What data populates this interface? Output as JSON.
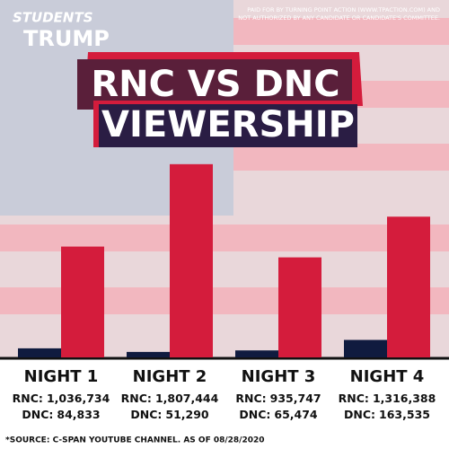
{
  "logo": [
    "STUDENTS",
    "TRUMP"
  ],
  "disclaimer": [
    "PAID FOR BY TURNING POINT ACTION (WWW.TPACTION.COM) AND",
    "NOT AUTHORIZED BY ANY CANDIDATE OR CANDIDATE'S COMMITTEE."
  ],
  "chart_data": {
    "type": "bar",
    "title": [
      "RNC VS DNC",
      "VIEWERSHIP"
    ],
    "categories": [
      "NIGHT 1",
      "NIGHT 2",
      "NIGHT 3",
      "NIGHT 4"
    ],
    "series": [
      {
        "name": "RNC:",
        "color": "#d41c3c",
        "values": [
          1036734,
          1807444,
          935747,
          1316388
        ],
        "value_labels": [
          "1,036,734",
          "1,807,444",
          "935,747",
          "1,316,388"
        ]
      },
      {
        "name": "DNC:",
        "color": "#101b3f",
        "values": [
          84833,
          51290,
          65474,
          163535
        ],
        "value_labels": [
          "84,833",
          "51,290",
          "65,474",
          "163,535"
        ]
      }
    ],
    "ylim": [
      0,
      2100000
    ]
  },
  "source": "*SOURCE: C-SPAN YOUTUBE CHANNEL. AS OF 08/28/2020"
}
